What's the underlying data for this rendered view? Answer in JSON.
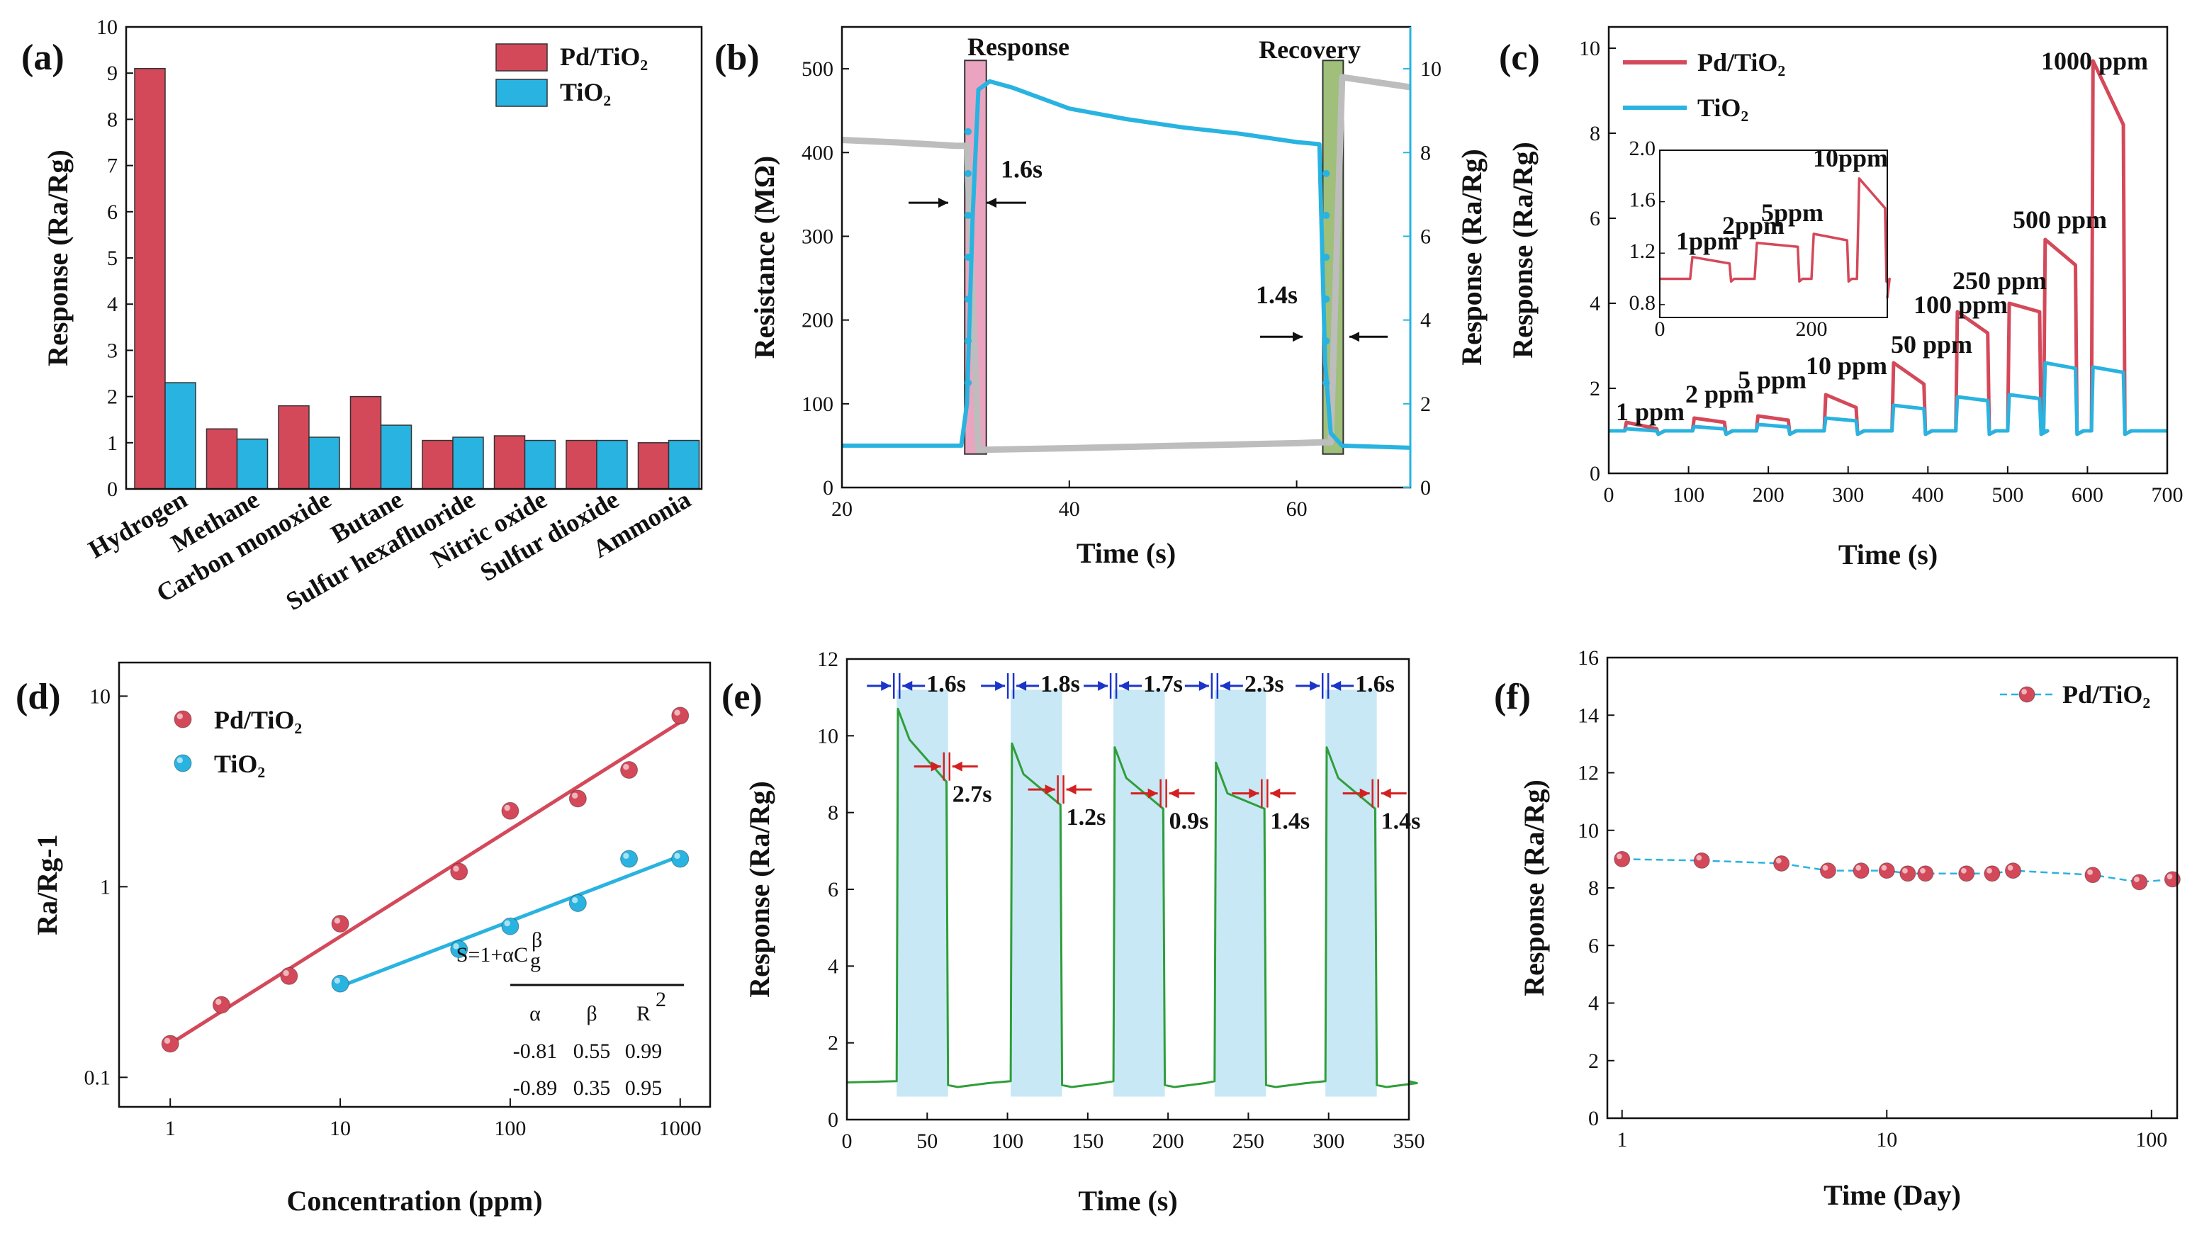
{
  "colors": {
    "red": "#d4495a",
    "blue": "#29b3e0",
    "green": "#2f9e3a",
    "gray": "#bdbdbd",
    "shade": "#c8e8f5",
    "pink": "#eaa4c0",
    "olive": "#9fbf7a",
    "arrowBlue": "#1a35c8",
    "arrowRed": "#d42020"
  },
  "chart_data": [
    {
      "panel": "(a)",
      "type": "bar",
      "categories": [
        "Hydrogen",
        "Methane",
        "Carbon monoxide",
        "Butane",
        "Sulfur hexafluoride",
        "Nitric oxide",
        "Sulfur dioxide",
        "Ammonia"
      ],
      "series": [
        {
          "name": "Pd/TiO₂",
          "values": [
            9.1,
            1.3,
            1.8,
            2.0,
            1.05,
            1.15,
            1.05,
            1.0
          ]
        },
        {
          "name": "TiO₂",
          "values": [
            2.3,
            1.08,
            1.12,
            1.38,
            1.12,
            1.05,
            1.05,
            1.05
          ]
        }
      ],
      "ylabel": "Response (Ra/Rg)",
      "ylim": [
        0,
        10
      ],
      "yticks": [
        "0",
        "1",
        "2",
        "3",
        "4",
        "5",
        "6",
        "7",
        "8",
        "9",
        "10"
      ]
    },
    {
      "panel": "(b)",
      "type": "line",
      "xlabel": "Time (s)",
      "ylabel": "Resistance (MΩ)",
      "ylabel2": "Response (Ra/Rg)",
      "xlim": [
        20,
        70
      ],
      "ylim": [
        0,
        550
      ],
      "y2lim": [
        0,
        11
      ],
      "xticks": [
        "20",
        "40",
        "60"
      ],
      "yticks": [
        "0",
        "100",
        "200",
        "300",
        "400",
        "500"
      ],
      "y2ticks": [
        "0",
        "2",
        "4",
        "6",
        "8",
        "10"
      ],
      "annotations": {
        "response": "Response",
        "recovery": "Recovery",
        "t_response": "1.6s",
        "t_recovery": "1.4s"
      },
      "series": [
        {
          "name": "Resistance",
          "x": [
            20,
            25,
            30,
            31,
            32,
            40,
            50,
            60,
            62,
            63,
            64,
            70
          ],
          "y": [
            415,
            412,
            408,
            408,
            45,
            47,
            50,
            53,
            54,
            54,
            490,
            478
          ]
        },
        {
          "name": "Response",
          "x": [
            20,
            30.5,
            31,
            31.5,
            32,
            33,
            35,
            40,
            45,
            50,
            55,
            60,
            62,
            62.5,
            63,
            64,
            70
          ],
          "y": [
            1.0,
            1.0,
            2.0,
            6.5,
            9.5,
            9.7,
            9.55,
            9.05,
            8.8,
            8.6,
            8.45,
            8.25,
            8.2,
            3.0,
            1.3,
            1.0,
            0.95
          ]
        }
      ]
    },
    {
      "panel": "(c)",
      "type": "line",
      "xlabel": "Time (s)",
      "ylabel": "Response (Ra/Rg)",
      "xlim": [
        0,
        700
      ],
      "ylim": [
        0,
        10.5
      ],
      "xticks": [
        "0",
        "100",
        "200",
        "300",
        "400",
        "500",
        "600",
        "700"
      ],
      "yticks": [
        "0",
        "2",
        "4",
        "6",
        "8",
        "10"
      ],
      "legend": [
        "Pd/TiO₂",
        "TiO₂"
      ],
      "labels": [
        "1 ppm",
        "2 ppm",
        "5 ppm",
        "10 ppm",
        "50 ppm",
        "100 ppm",
        "250 ppm",
        "500 ppm",
        "1000 ppm"
      ],
      "pulses": [
        {
          "on": 20,
          "off": 60,
          "pd": 1.2,
          "pdEnd": 1.05,
          "ti": 1.05
        },
        {
          "on": 105,
          "off": 145,
          "pd": 1.3,
          "pdEnd": 1.2,
          "ti": 1.1
        },
        {
          "on": 185,
          "off": 225,
          "pd": 1.35,
          "pdEnd": 1.25,
          "ti": 1.15
        },
        {
          "on": 270,
          "off": 310,
          "pd": 1.85,
          "pdEnd": 1.55,
          "ti": 1.3
        },
        {
          "on": 355,
          "off": 395,
          "pd": 2.6,
          "pdEnd": 2.1,
          "ti": 1.6
        },
        {
          "on": 435,
          "off": 475,
          "pd": 3.8,
          "pdEnd": 3.3,
          "ti": 1.8
        },
        {
          "on": 500,
          "off": 540,
          "pd": 4.0,
          "pdEnd": 3.8,
          "ti": 1.85
        },
        {
          "on": 545,
          "off": 585,
          "pd": 5.5,
          "pdEnd": 4.9,
          "ti": 2.6
        },
        {
          "on": 605,
          "off": 645,
          "pd": 9.7,
          "pdEnd": 8.2,
          "ti": 2.5
        }
      ],
      "inset": {
        "xlim": [
          0,
          300
        ],
        "ylim": [
          0.7,
          2.0
        ],
        "xticks": [
          "0",
          "200"
        ],
        "yticks": [
          "0.8",
          "1.2",
          "1.6",
          "2.0"
        ],
        "labels": [
          "1ppm",
          "2ppm",
          "5ppm",
          "10ppm"
        ],
        "pulses": [
          {
            "on": 40,
            "off": 95,
            "pd": 1.17,
            "pdEnd": 1.12
          },
          {
            "on": 125,
            "off": 185,
            "pd": 1.28,
            "pdEnd": 1.25
          },
          {
            "on": 200,
            "off": 250,
            "pd": 1.35,
            "pdEnd": 1.3
          },
          {
            "on": 260,
            "off": 300,
            "pd": 1.78,
            "pdEnd": 1.55
          }
        ]
      }
    },
    {
      "panel": "(d)",
      "type": "scatter",
      "xlabel": "Concentration (ppm)",
      "ylabel": "Ra/Rg-1",
      "xscale": "log",
      "yscale": "log",
      "xlim": [
        0.5,
        1500
      ],
      "ylim": [
        0.07,
        15
      ],
      "xticks": [
        "1",
        "10",
        "100",
        "1000"
      ],
      "yticks": [
        "0.1",
        "1",
        "10"
      ],
      "series": [
        {
          "name": "Pd/TiO₂",
          "x": [
            1,
            2,
            5,
            10,
            50,
            100,
            250,
            500,
            1000
          ],
          "y": [
            0.15,
            0.24,
            0.34,
            0.64,
            1.2,
            2.5,
            2.9,
            4.1,
            7.9
          ],
          "fit": [
            0.15,
            7.3
          ]
        },
        {
          "name": "TiO₂",
          "x": [
            10,
            50,
            100,
            250,
            500,
            1000
          ],
          "y": [
            0.31,
            0.47,
            0.62,
            0.82,
            1.4,
            1.4
          ],
          "fit": [
            0.3,
            1.45
          ]
        }
      ],
      "table": {
        "equation": "S=1+αC",
        "eq_sub": "g",
        "eq_sup": "β",
        "headers": [
          "α",
          "β",
          "R"
        ],
        "r_sup": "2",
        "rows": [
          [
            "-0.81",
            "0.55",
            "0.99"
          ],
          [
            "-0.89",
            "0.35",
            "0.95"
          ]
        ]
      }
    },
    {
      "panel": "(e)",
      "type": "line",
      "xlabel": "Time (s)",
      "ylabel": "Response (Ra/Rg)",
      "xlim": [
        0,
        350
      ],
      "ylim": [
        0,
        12
      ],
      "xticks": [
        "0",
        "50",
        "100",
        "150",
        "200",
        "250",
        "300",
        "350"
      ],
      "yticks": [
        "0",
        "2",
        "4",
        "6",
        "8",
        "10",
        "12"
      ],
      "cycles": [
        {
          "on": 31,
          "off": 63,
          "peak": 10.7,
          "end": 8.8,
          "resp": "1.6s",
          "rec": "2.7s"
        },
        {
          "on": 102,
          "off": 134,
          "peak": 9.8,
          "end": 8.2,
          "resp": "1.8s",
          "rec": "1.2s"
        },
        {
          "on": 166,
          "off": 198,
          "peak": 9.7,
          "end": 8.1,
          "resp": "1.7s",
          "rec": "0.9s"
        },
        {
          "on": 229,
          "off": 261,
          "peak": 9.3,
          "end": 8.1,
          "resp": "2.3s",
          "rec": "1.4s"
        },
        {
          "on": 298,
          "off": 330,
          "peak": 9.7,
          "end": 8.1,
          "resp": "1.6s",
          "rec": "1.4s"
        }
      ]
    },
    {
      "panel": "(f)",
      "type": "scatter",
      "xlabel": "Time (Day)",
      "ylabel": "Response (Ra/Rg)",
      "xscale": "log",
      "xlim": [
        0.88,
        125
      ],
      "ylim": [
        0,
        16
      ],
      "xticks": [
        "1",
        "10",
        "100"
      ],
      "yticks": [
        "0",
        "2",
        "4",
        "6",
        "8",
        "10",
        "12",
        "14",
        "16"
      ],
      "legend": [
        "Pd/TiO₂"
      ],
      "x": [
        1,
        2,
        4,
        6,
        8,
        10,
        12,
        14,
        20,
        25,
        30,
        60,
        90,
        120
      ],
      "y": [
        9.0,
        8.95,
        8.85,
        8.6,
        8.6,
        8.6,
        8.5,
        8.5,
        8.5,
        8.5,
        8.6,
        8.45,
        8.2,
        8.3
      ]
    }
  ]
}
